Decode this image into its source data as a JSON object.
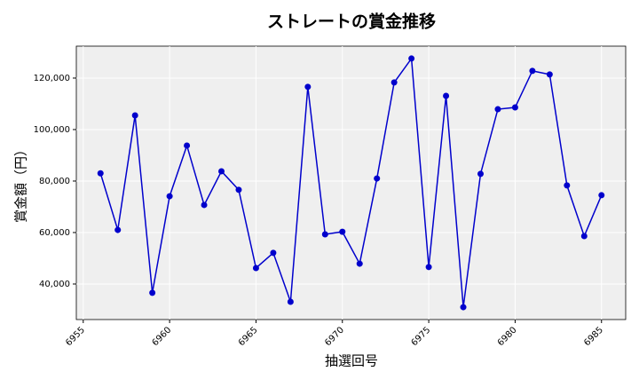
{
  "chart_data": {
    "type": "line",
    "title": "ストレートの賞金推移",
    "x_label": "抽選回号",
    "y_label": "賞金額（円）",
    "x": [
      6956,
      6957,
      6958,
      6959,
      6960,
      6961,
      6962,
      6963,
      6964,
      6965,
      6966,
      6967,
      6968,
      6969,
      6970,
      6971,
      6972,
      6973,
      6974,
      6975,
      6976,
      6977,
      6978,
      6979,
      6980,
      6981,
      6982,
      6983,
      6984,
      6985
    ],
    "series": [
      {
        "color": "#0000cc",
        "values": [
          83000,
          61000,
          105500,
          36600,
          74100,
          93800,
          70700,
          83800,
          76600,
          46200,
          52100,
          33100,
          116600,
          59300,
          60300,
          47900,
          81000,
          118300,
          127600,
          46600,
          113100,
          31000,
          82800,
          107900,
          108600,
          122800,
          121400,
          78300,
          58600,
          74500
        ]
      }
    ],
    "xlim": [
      6954.6,
      6986.4
    ],
    "ylim": [
      26200,
      132400
    ],
    "xticks": [
      6955,
      6960,
      6965,
      6970,
      6975,
      6980,
      6985
    ],
    "yticks": [
      {
        "value": 40000,
        "label": "40,000"
      },
      {
        "value": 60000,
        "label": "60,000"
      },
      {
        "value": 80000,
        "label": "80,000"
      },
      {
        "value": 100000,
        "label": "100,000"
      },
      {
        "value": 120000,
        "label": "120,000"
      }
    ],
    "grid": true
  }
}
